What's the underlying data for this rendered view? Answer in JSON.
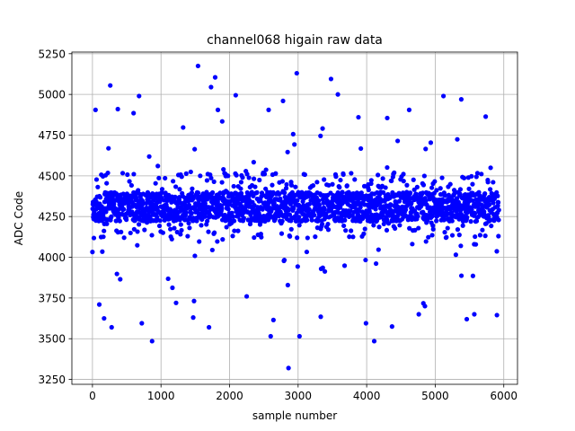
{
  "chart_data": {
    "type": "scatter",
    "title": "channel068 higain raw data",
    "xlabel": "sample number",
    "ylabel": "ADC Code",
    "xlim": [
      -300,
      6200
    ],
    "ylim": [
      3220,
      5260
    ],
    "x_ticks": [
      0,
      1000,
      2000,
      3000,
      4000,
      5000,
      6000
    ],
    "y_ticks": [
      3250,
      3500,
      3750,
      4000,
      4250,
      4500,
      4750,
      5000,
      5250
    ],
    "grid": true,
    "marker_color": "#0000ff",
    "n_samples": 5930,
    "core_band": {
      "x_start": 0,
      "x_end": 5930,
      "y_low": 4220,
      "y_high": 4400
    },
    "outer_band": {
      "y_low": 4120,
      "y_high": 4520
    },
    "outliers": [
      {
        "x": 1540,
        "y": 5175
      },
      {
        "x": 1790,
        "y": 5105
      },
      {
        "x": 2980,
        "y": 5130
      },
      {
        "x": 3480,
        "y": 5095
      },
      {
        "x": 260,
        "y": 5055
      },
      {
        "x": 1730,
        "y": 5045
      },
      {
        "x": 5120,
        "y": 4990
      },
      {
        "x": 680,
        "y": 4990
      },
      {
        "x": 2090,
        "y": 4995
      },
      {
        "x": 2780,
        "y": 4960
      },
      {
        "x": 3580,
        "y": 5000
      },
      {
        "x": 5380,
        "y": 4970
      },
      {
        "x": 45,
        "y": 4905
      },
      {
        "x": 370,
        "y": 4910
      },
      {
        "x": 1830,
        "y": 4905
      },
      {
        "x": 2570,
        "y": 4905
      },
      {
        "x": 4620,
        "y": 4905
      },
      {
        "x": 4300,
        "y": 4855
      },
      {
        "x": 600,
        "y": 4885
      },
      {
        "x": 3880,
        "y": 4860
      },
      {
        "x": 2860,
        "y": 3320
      },
      {
        "x": 870,
        "y": 3485
      },
      {
        "x": 4110,
        "y": 3485
      },
      {
        "x": 3020,
        "y": 3515
      },
      {
        "x": 2600,
        "y": 3515
      },
      {
        "x": 280,
        "y": 3570
      },
      {
        "x": 1700,
        "y": 3570
      },
      {
        "x": 4370,
        "y": 3575
      },
      {
        "x": 720,
        "y": 3595
      },
      {
        "x": 3990,
        "y": 3595
      },
      {
        "x": 5900,
        "y": 3645
      },
      {
        "x": 5460,
        "y": 3620
      },
      {
        "x": 5570,
        "y": 3650
      },
      {
        "x": 4760,
        "y": 3650
      },
      {
        "x": 3330,
        "y": 3635
      },
      {
        "x": 2640,
        "y": 3615
      },
      {
        "x": 170,
        "y": 3625
      },
      {
        "x": 1470,
        "y": 3630
      },
      {
        "x": 1220,
        "y": 3720
      },
      {
        "x": 2250,
        "y": 3760
      },
      {
        "x": 4850,
        "y": 3700
      },
      {
        "x": 100,
        "y": 3710
      }
    ]
  }
}
